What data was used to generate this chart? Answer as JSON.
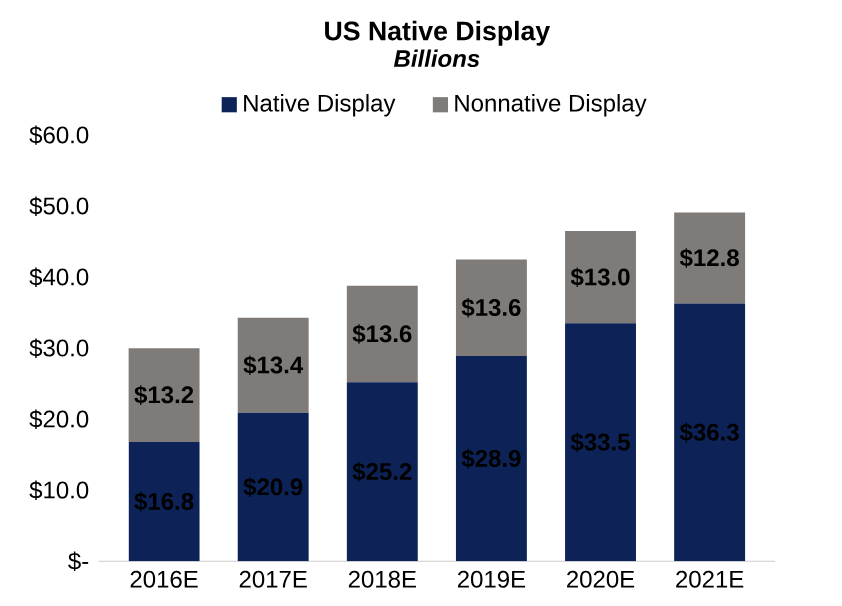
{
  "chart_data": {
    "type": "bar",
    "title": "US Native Display",
    "subtitle": "Billions",
    "stacked": true,
    "legend": "top",
    "categories": [
      "2016E",
      "2017E",
      "2018E",
      "2019E",
      "2020E",
      "2021E"
    ],
    "series": [
      {
        "name": "Native Display",
        "color": "#0d2257",
        "values": [
          16.8,
          20.9,
          25.2,
          28.9,
          33.5,
          36.3
        ],
        "value_labels": [
          "$16.8",
          "$20.9",
          "$25.2",
          "$28.9",
          "$33.5",
          "$36.3"
        ]
      },
      {
        "name": "Nonnative Display",
        "color": "#7f7b78",
        "values": [
          13.2,
          13.4,
          13.6,
          13.6,
          13.0,
          12.8
        ],
        "value_labels": [
          "$13.2",
          "$13.4",
          "$13.6",
          "$13.6",
          "$13.0",
          "$12.8"
        ]
      }
    ],
    "ylim": [
      0,
      60
    ],
    "yticks": [
      {
        "value": 0,
        "label": "$-"
      },
      {
        "value": 10,
        "label": "$10.0"
      },
      {
        "value": 20,
        "label": "$20.0"
      },
      {
        "value": 30,
        "label": "$30.0"
      },
      {
        "value": 40,
        "label": "$40.0"
      },
      {
        "value": 50,
        "label": "$50.0"
      },
      {
        "value": 60,
        "label": "$60.0"
      }
    ]
  }
}
